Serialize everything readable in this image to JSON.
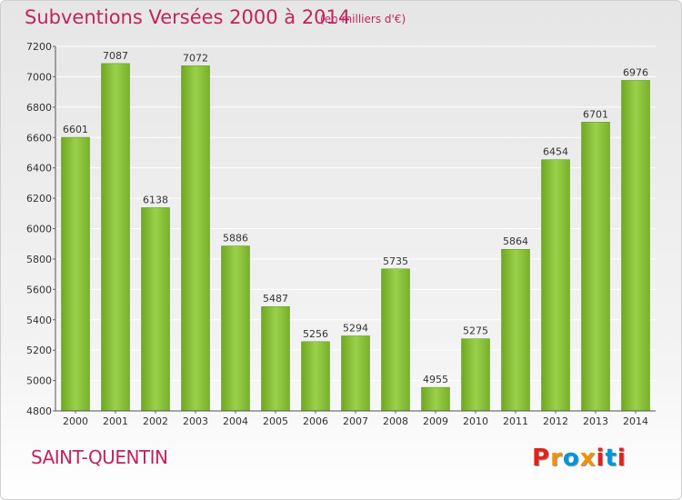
{
  "header": {
    "title": "Subventions Versées 2000 à 2014",
    "subtitle": "(en milliers d'€)"
  },
  "footer": {
    "commune": "SAINT-QUENTIN",
    "logo_text": "Proxiti",
    "logo_colors": [
      "#e2231a",
      "#f39200",
      "#0095d9",
      "#f39200",
      "#e2231a",
      "#0095d9",
      "#e2231a"
    ]
  },
  "chart_data": {
    "type": "bar",
    "title": "Subventions Versées 2000 à 2014",
    "subtitle": "(en milliers d'€)",
    "xlabel": "",
    "ylabel": "",
    "categories": [
      "2000",
      "2001",
      "2002",
      "2003",
      "2004",
      "2005",
      "2006",
      "2007",
      "2008",
      "2009",
      "2010",
      "2011",
      "2012",
      "2013",
      "2014"
    ],
    "values": [
      6601,
      7087,
      6138,
      7072,
      5886,
      5487,
      5256,
      5294,
      5735,
      4955,
      5275,
      5864,
      6454,
      6701,
      6976
    ],
    "ylim": [
      4800,
      7200
    ],
    "yticks": [
      4800,
      5000,
      5200,
      5400,
      5600,
      5800,
      6000,
      6200,
      6400,
      6600,
      6800,
      7000,
      7200
    ],
    "grid": true,
    "bar_color": "#8cc43c",
    "data_labels": true,
    "legend": "none"
  }
}
